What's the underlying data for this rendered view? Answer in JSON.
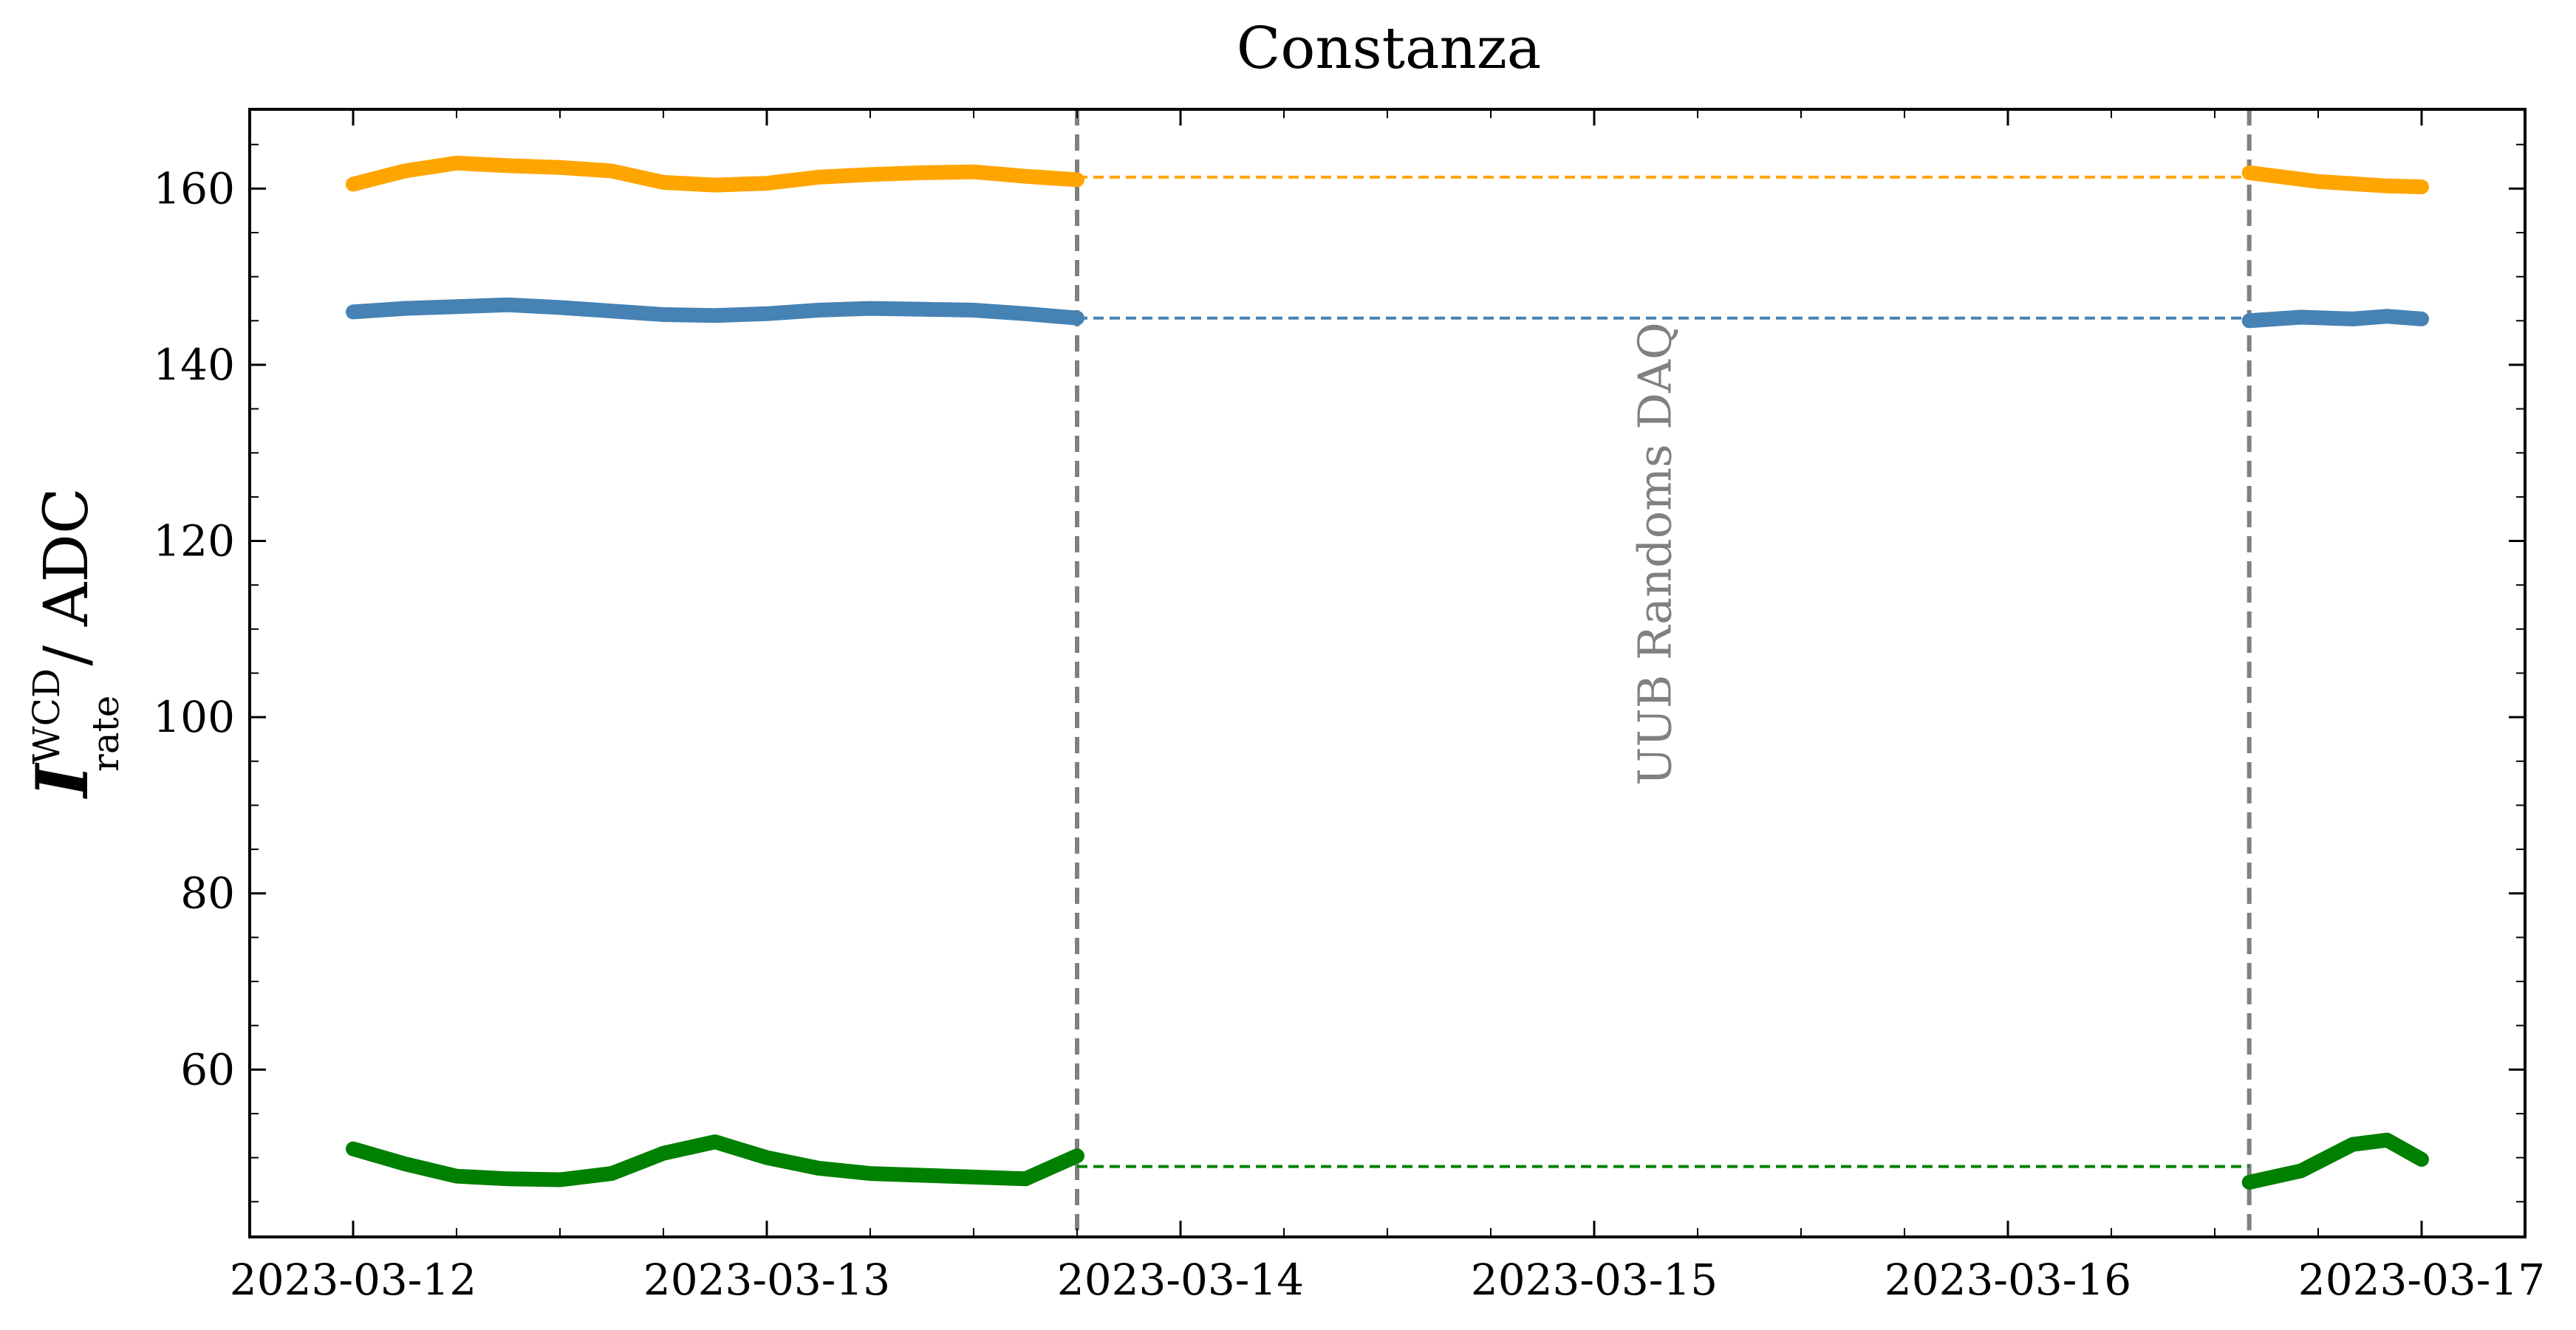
{
  "chart_data": {
    "type": "line",
    "title": "Constanza",
    "ylabel": {
      "symbol": "I",
      "superscript": "WCD",
      "subscript": "rate",
      "unit": "/ ADC"
    },
    "xlabel": "",
    "x_ticks": [
      "2023-03-12",
      "2023-03-13",
      "2023-03-14",
      "2023-03-15",
      "2023-03-16",
      "2023-03-17"
    ],
    "xlim": [
      "2023-03-11T18:00",
      "2023-03-17T06:00"
    ],
    "ylim": [
      41,
      169
    ],
    "y_ticks": [
      60,
      80,
      100,
      120,
      140,
      160
    ],
    "grid": false,
    "gap": {
      "start": "2023-03-13T18:00",
      "end": "2023-03-16T14:00",
      "label": "UUB Randoms DAQ"
    },
    "series": [
      {
        "color": "#ffa500",
        "fill_value": 161.3,
        "segments": [
          [
            [
              "2023-03-12T00:00",
              160.5
            ],
            [
              "2023-03-12T03:00",
              162.0
            ],
            [
              "2023-03-12T06:00",
              162.9
            ],
            [
              "2023-03-12T09:00",
              162.6
            ],
            [
              "2023-03-12T12:00",
              162.4
            ],
            [
              "2023-03-12T15:00",
              162.0
            ],
            [
              "2023-03-12T18:00",
              160.7
            ],
            [
              "2023-03-12T21:00",
              160.4
            ],
            [
              "2023-03-13T00:00",
              160.6
            ],
            [
              "2023-03-13T03:00",
              161.3
            ],
            [
              "2023-03-13T06:00",
              161.6
            ],
            [
              "2023-03-13T09:00",
              161.8
            ],
            [
              "2023-03-13T12:00",
              161.9
            ],
            [
              "2023-03-13T15:00",
              161.4
            ],
            [
              "2023-03-13T18:00",
              161.0
            ]
          ],
          [
            [
              "2023-03-16T14:00",
              161.8
            ],
            [
              "2023-03-16T18:00",
              160.8
            ],
            [
              "2023-03-16T22:00",
              160.3
            ],
            [
              "2023-03-17T00:00",
              160.2
            ]
          ]
        ]
      },
      {
        "color": "#4682b4",
        "fill_value": 145.3,
        "segments": [
          [
            [
              "2023-03-12T00:00",
              146.0
            ],
            [
              "2023-03-12T03:00",
              146.4
            ],
            [
              "2023-03-12T06:00",
              146.6
            ],
            [
              "2023-03-12T09:00",
              146.8
            ],
            [
              "2023-03-12T12:00",
              146.5
            ],
            [
              "2023-03-12T15:00",
              146.1
            ],
            [
              "2023-03-12T18:00",
              145.7
            ],
            [
              "2023-03-12T21:00",
              145.6
            ],
            [
              "2023-03-13T00:00",
              145.8
            ],
            [
              "2023-03-13T03:00",
              146.2
            ],
            [
              "2023-03-13T06:00",
              146.4
            ],
            [
              "2023-03-13T09:00",
              146.3
            ],
            [
              "2023-03-13T12:00",
              146.2
            ],
            [
              "2023-03-13T15:00",
              145.8
            ],
            [
              "2023-03-13T18:00",
              145.3
            ]
          ],
          [
            [
              "2023-03-16T14:00",
              145.0
            ],
            [
              "2023-03-16T17:00",
              145.4
            ],
            [
              "2023-03-16T20:00",
              145.2
            ],
            [
              "2023-03-16T22:00",
              145.5
            ],
            [
              "2023-03-17T00:00",
              145.2
            ]
          ]
        ]
      },
      {
        "color": "#008000",
        "fill_value": 49.0,
        "segments": [
          [
            [
              "2023-03-12T00:00",
              51.0
            ],
            [
              "2023-03-12T03:00",
              49.3
            ],
            [
              "2023-03-12T06:00",
              47.9
            ],
            [
              "2023-03-12T09:00",
              47.6
            ],
            [
              "2023-03-12T12:00",
              47.5
            ],
            [
              "2023-03-12T15:00",
              48.2
            ],
            [
              "2023-03-12T18:00",
              50.5
            ],
            [
              "2023-03-12T21:00",
              51.8
            ],
            [
              "2023-03-13T00:00",
              50.0
            ],
            [
              "2023-03-13T03:00",
              48.8
            ],
            [
              "2023-03-13T06:00",
              48.2
            ],
            [
              "2023-03-13T09:00",
              48.0
            ],
            [
              "2023-03-13T12:00",
              47.8
            ],
            [
              "2023-03-13T15:00",
              47.6
            ],
            [
              "2023-03-13T18:00",
              50.2
            ]
          ],
          [
            [
              "2023-03-16T14:00",
              47.2
            ],
            [
              "2023-03-16T17:00",
              48.5
            ],
            [
              "2023-03-16T20:00",
              51.5
            ],
            [
              "2023-03-16T22:00",
              52.0
            ],
            [
              "2023-03-17T00:00",
              49.8
            ]
          ]
        ]
      }
    ]
  }
}
